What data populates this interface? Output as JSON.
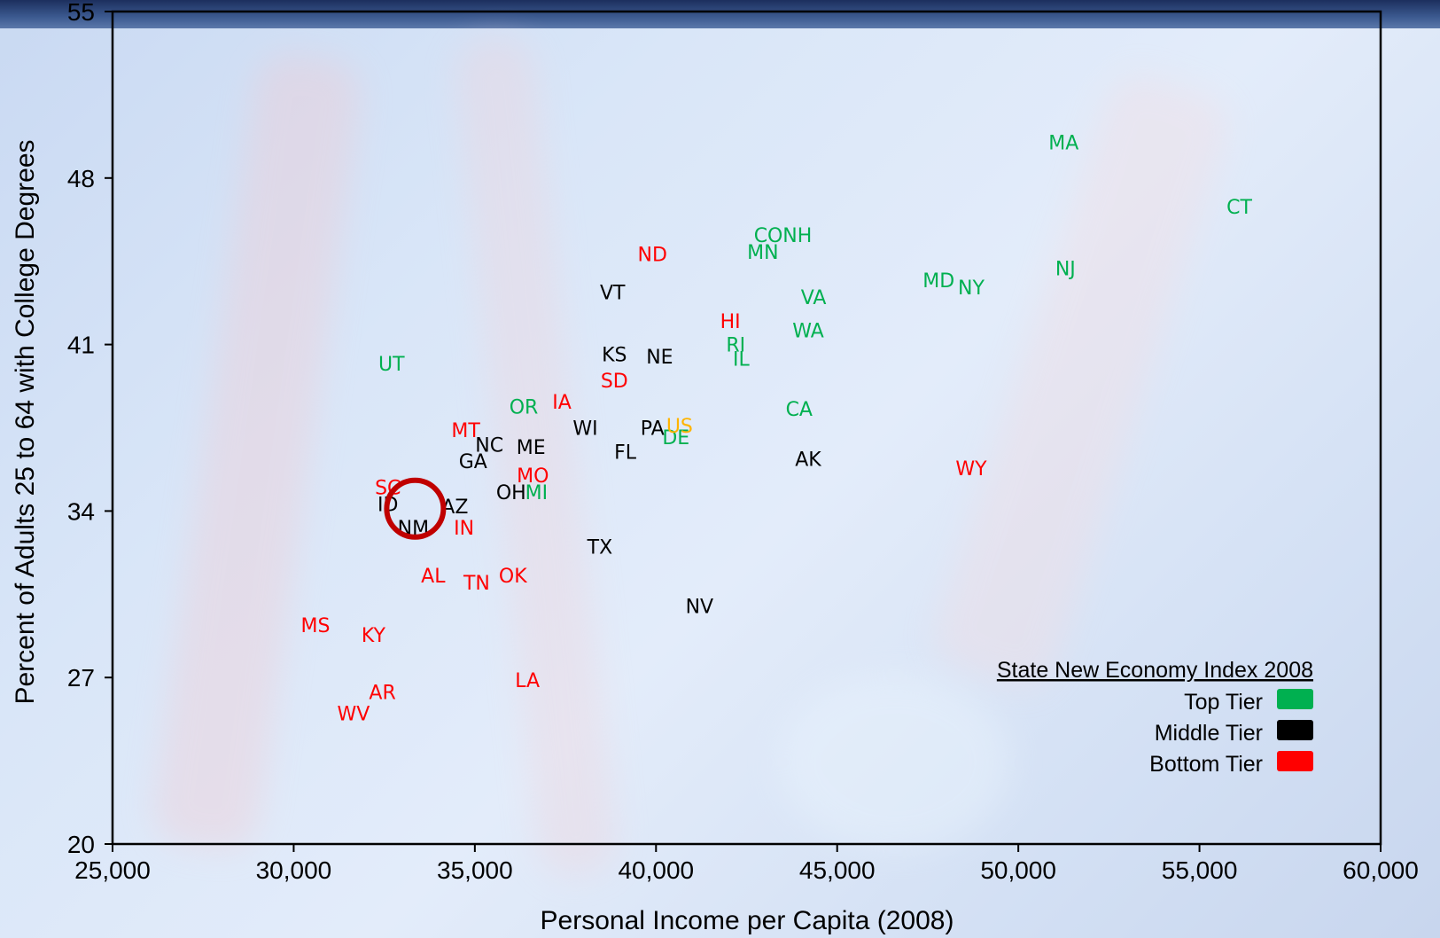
{
  "colors": {
    "top": "#00b050",
    "middle": "#000000",
    "bottom": "#ff0000",
    "us": "#ffb400",
    "circle": "#c00000"
  },
  "chart_data": {
    "type": "scatter",
    "xlabel": "Personal Income per Capita (2008)",
    "ylabel": "Percent of Adults 25 to 64 with College Degrees",
    "xlim": [
      25000,
      60000
    ],
    "ylim": [
      20,
      55
    ],
    "xticks": [
      25000,
      30000,
      35000,
      40000,
      45000,
      50000,
      55000,
      60000
    ],
    "xtick_labels": [
      "25,000",
      "30,000",
      "35,000",
      "40,000",
      "45,000",
      "50,000",
      "55,000",
      "60,000"
    ],
    "yticks": [
      20,
      27,
      34,
      41,
      48,
      55
    ],
    "ytick_labels": [
      "20",
      "27",
      "34",
      "41",
      "48",
      "55"
    ],
    "grid": false,
    "legend": {
      "title": "State New Economy Index 2008",
      "placement": "bottom-right",
      "entries": [
        {
          "tier": "top",
          "label": "Top Tier"
        },
        {
          "tier": "middle",
          "label": "Middle Tier"
        },
        {
          "tier": "bottom",
          "label": "Bottom Tier"
        }
      ]
    },
    "highlight": {
      "x": 33350,
      "y": 34.1
    },
    "points": [
      {
        "label": "MA",
        "tier": "top",
        "x": 51250,
        "y": 49.5
      },
      {
        "label": "CT",
        "tier": "top",
        "x": 56100,
        "y": 46.8
      },
      {
        "label": "CO",
        "tier": "top",
        "x": 43100,
        "y": 45.6
      },
      {
        "label": "NH",
        "tier": "top",
        "x": 43900,
        "y": 45.6
      },
      {
        "label": "MN",
        "tier": "top",
        "x": 42950,
        "y": 44.9
      },
      {
        "label": "NJ",
        "tier": "top",
        "x": 51300,
        "y": 44.2
      },
      {
        "label": "MD",
        "tier": "top",
        "x": 47800,
        "y": 43.7
      },
      {
        "label": "NY",
        "tier": "top",
        "x": 48700,
        "y": 43.4
      },
      {
        "label": "VA",
        "tier": "top",
        "x": 44350,
        "y": 43.0
      },
      {
        "label": "WA",
        "tier": "top",
        "x": 44200,
        "y": 41.6
      },
      {
        "label": "RI",
        "tier": "top",
        "x": 42200,
        "y": 41.0
      },
      {
        "label": "IL",
        "tier": "top",
        "x": 42350,
        "y": 40.4
      },
      {
        "label": "UT",
        "tier": "top",
        "x": 32700,
        "y": 40.2
      },
      {
        "label": "OR",
        "tier": "top",
        "x": 36350,
        "y": 38.4
      },
      {
        "label": "CA",
        "tier": "top",
        "x": 43950,
        "y": 38.3
      },
      {
        "label": "DE",
        "tier": "top",
        "x": 40550,
        "y": 37.1
      },
      {
        "label": "MI",
        "tier": "top",
        "x": 36700,
        "y": 34.8
      },
      {
        "label": "VT",
        "tier": "middle",
        "x": 38800,
        "y": 43.2
      },
      {
        "label": "KS",
        "tier": "middle",
        "x": 38850,
        "y": 40.6
      },
      {
        "label": "NE",
        "tier": "middle",
        "x": 40100,
        "y": 40.5
      },
      {
        "label": "WI",
        "tier": "middle",
        "x": 38050,
        "y": 37.5
      },
      {
        "label": "PA",
        "tier": "middle",
        "x": 39900,
        "y": 37.5
      },
      {
        "label": "NC",
        "tier": "middle",
        "x": 35400,
        "y": 36.8
      },
      {
        "label": "ME",
        "tier": "middle",
        "x": 36550,
        "y": 36.7
      },
      {
        "label": "FL",
        "tier": "middle",
        "x": 39150,
        "y": 36.5
      },
      {
        "label": "GA",
        "tier": "middle",
        "x": 34950,
        "y": 36.1
      },
      {
        "label": "AK",
        "tier": "middle",
        "x": 44200,
        "y": 36.2
      },
      {
        "label": "OH",
        "tier": "middle",
        "x": 36000,
        "y": 34.8
      },
      {
        "label": "ID",
        "tier": "middle",
        "x": 32600,
        "y": 34.3
      },
      {
        "label": "AZ",
        "tier": "middle",
        "x": 34450,
        "y": 34.2
      },
      {
        "label": "NM",
        "tier": "middle",
        "x": 33300,
        "y": 33.3
      },
      {
        "label": "TX",
        "tier": "middle",
        "x": 38450,
        "y": 32.5
      },
      {
        "label": "NV",
        "tier": "middle",
        "x": 41200,
        "y": 30.0
      },
      {
        "label": "ND",
        "tier": "bottom",
        "x": 39900,
        "y": 44.8
      },
      {
        "label": "HI",
        "tier": "bottom",
        "x": 42050,
        "y": 42.0
      },
      {
        "label": "SD",
        "tier": "bottom",
        "x": 38850,
        "y": 39.5
      },
      {
        "label": "IA",
        "tier": "bottom",
        "x": 37400,
        "y": 38.6
      },
      {
        "label": "MT",
        "tier": "bottom",
        "x": 34750,
        "y": 37.4
      },
      {
        "label": "MO",
        "tier": "bottom",
        "x": 36600,
        "y": 35.5
      },
      {
        "label": "SC",
        "tier": "bottom",
        "x": 32600,
        "y": 35.0
      },
      {
        "label": "IN",
        "tier": "bottom",
        "x": 34700,
        "y": 33.3
      },
      {
        "label": "AL",
        "tier": "bottom",
        "x": 33850,
        "y": 31.3
      },
      {
        "label": "TN",
        "tier": "bottom",
        "x": 35050,
        "y": 31.0
      },
      {
        "label": "OK",
        "tier": "bottom",
        "x": 36050,
        "y": 31.3
      },
      {
        "label": "MS",
        "tier": "bottom",
        "x": 30600,
        "y": 29.2
      },
      {
        "label": "KY",
        "tier": "bottom",
        "x": 32200,
        "y": 28.8
      },
      {
        "label": "AR",
        "tier": "bottom",
        "x": 32450,
        "y": 26.4
      },
      {
        "label": "WV",
        "tier": "bottom",
        "x": 31650,
        "y": 25.5
      },
      {
        "label": "LA",
        "tier": "bottom",
        "x": 36450,
        "y": 26.9
      },
      {
        "label": "WY",
        "tier": "bottom",
        "x": 48700,
        "y": 35.8
      },
      {
        "label": "US",
        "tier": "us",
        "x": 40650,
        "y": 37.6
      }
    ]
  }
}
